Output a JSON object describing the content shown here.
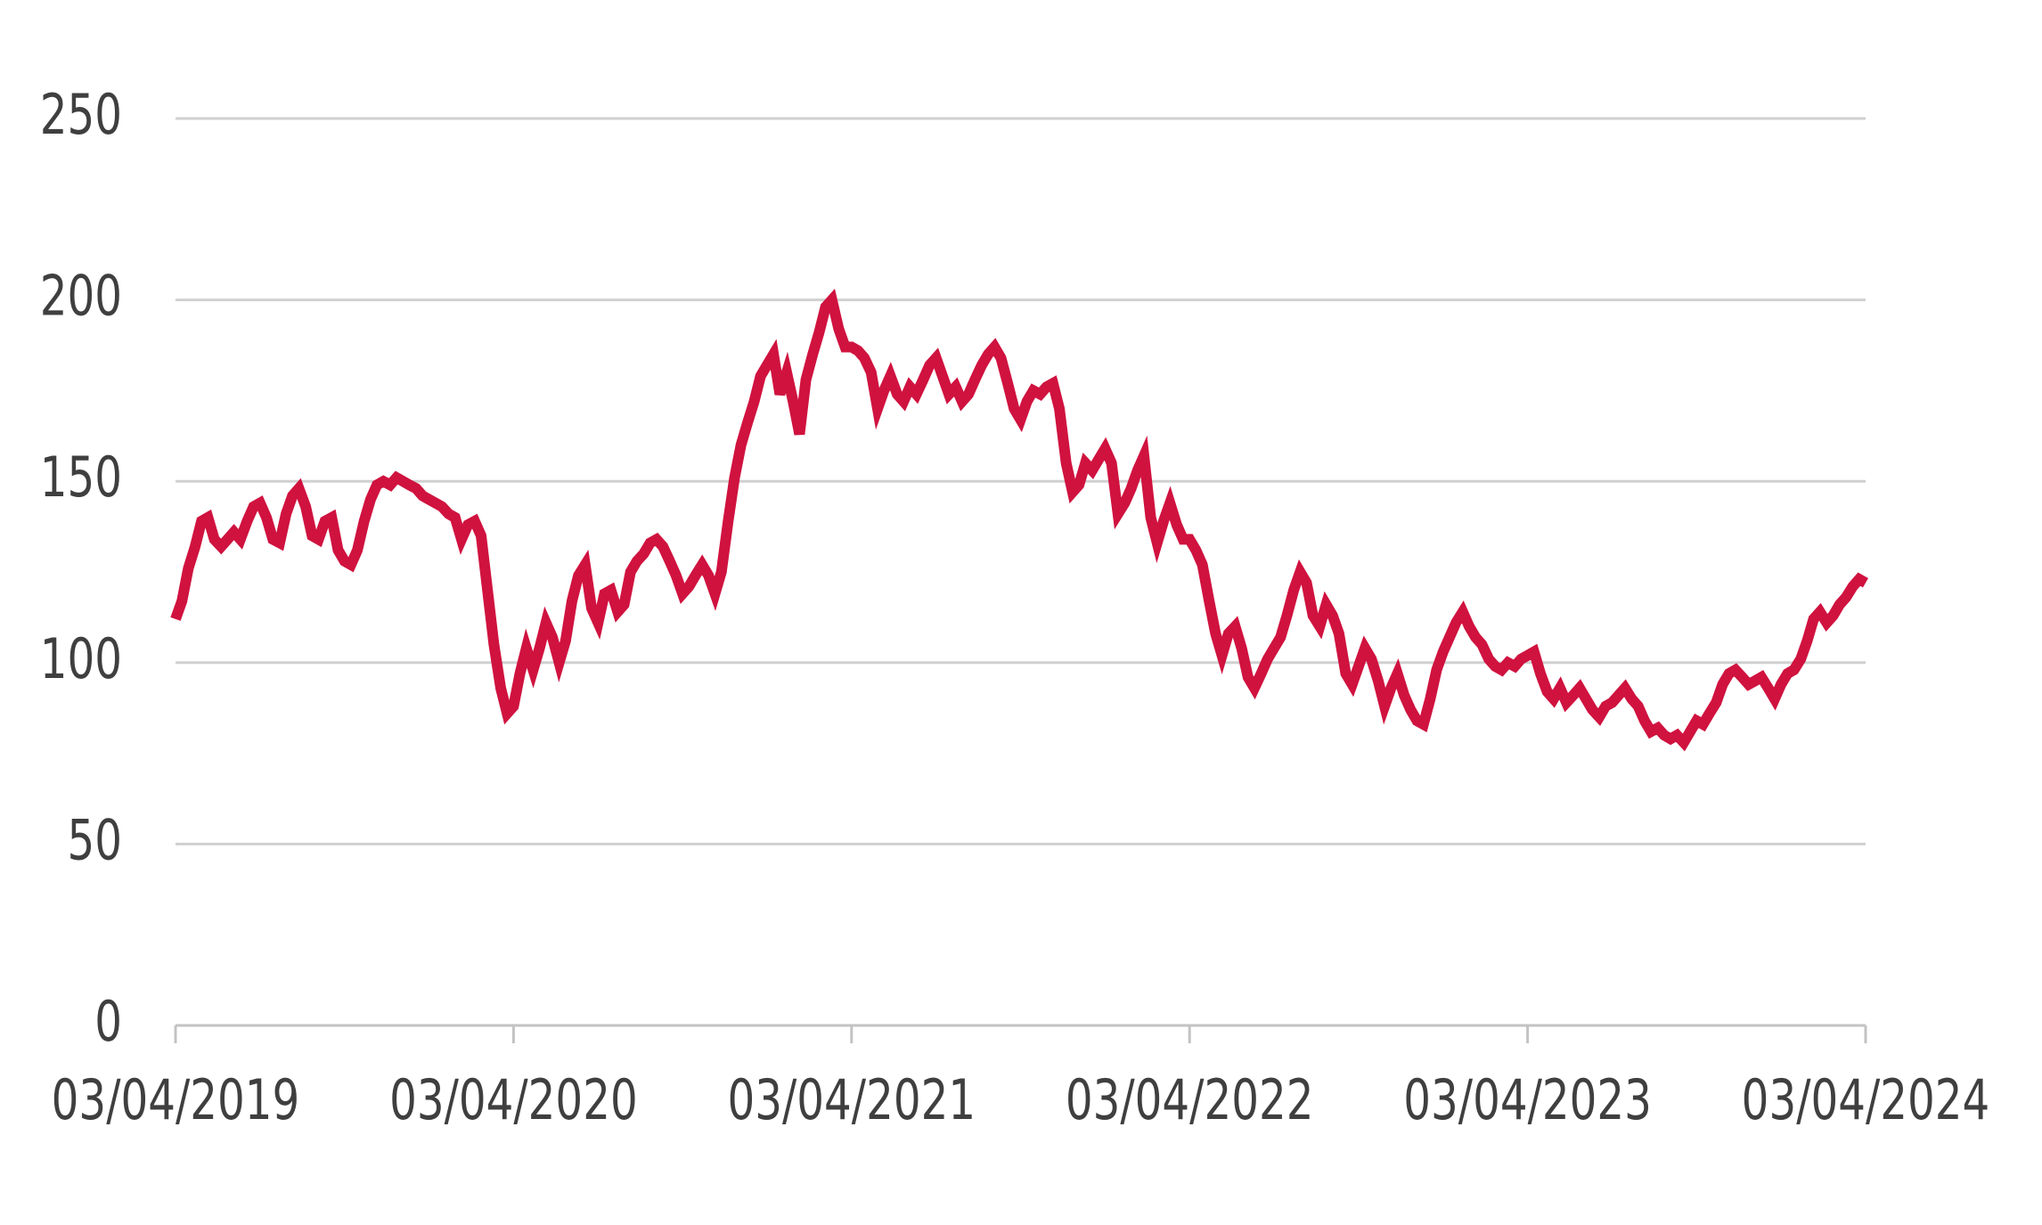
{
  "chart_data": {
    "type": "line",
    "title": "",
    "legend": "none",
    "grid": "horizontal",
    "background": "#ffffff",
    "line_color": "#d0123f",
    "grid_color": "#d0d0d0",
    "axis_color": "#c3c3c3",
    "label_color": "#3f3f3f",
    "ylim": [
      0,
      250
    ],
    "y_ticks": [
      250,
      200,
      150,
      100,
      50,
      0
    ],
    "y_tick_labels": [
      "250",
      "200",
      "150",
      "100",
      "50",
      "0"
    ],
    "x_tick_labels": [
      "03/04/2019",
      "03/04/2020",
      "03/04/2021",
      "03/04/2022",
      "03/04/2023",
      "03/04/2024"
    ],
    "x_unit": "years since 03/04/2019",
    "xlim_years": [
      0,
      5
    ],
    "points": [
      [
        0.0,
        112
      ],
      [
        0.019,
        117
      ],
      [
        0.038,
        126
      ],
      [
        0.058,
        132
      ],
      [
        0.077,
        139
      ],
      [
        0.096,
        140
      ],
      [
        0.115,
        134
      ],
      [
        0.135,
        132
      ],
      [
        0.154,
        134
      ],
      [
        0.173,
        136
      ],
      [
        0.192,
        134
      ],
      [
        0.212,
        139
      ],
      [
        0.231,
        143
      ],
      [
        0.25,
        144
      ],
      [
        0.269,
        140
      ],
      [
        0.288,
        134
      ],
      [
        0.308,
        133
      ],
      [
        0.327,
        141
      ],
      [
        0.346,
        146
      ],
      [
        0.365,
        148
      ],
      [
        0.385,
        143
      ],
      [
        0.404,
        135
      ],
      [
        0.423,
        134
      ],
      [
        0.442,
        139
      ],
      [
        0.462,
        140
      ],
      [
        0.481,
        131
      ],
      [
        0.5,
        128
      ],
      [
        0.519,
        127
      ],
      [
        0.538,
        131
      ],
      [
        0.558,
        139
      ],
      [
        0.577,
        145
      ],
      [
        0.596,
        149
      ],
      [
        0.615,
        150
      ],
      [
        0.635,
        149
      ],
      [
        0.654,
        151
      ],
      [
        0.673,
        150
      ],
      [
        0.692,
        149
      ],
      [
        0.712,
        148
      ],
      [
        0.731,
        146
      ],
      [
        0.75,
        145
      ],
      [
        0.769,
        144
      ],
      [
        0.788,
        143
      ],
      [
        0.808,
        141
      ],
      [
        0.827,
        140
      ],
      [
        0.846,
        134
      ],
      [
        0.865,
        138
      ],
      [
        0.885,
        139
      ],
      [
        0.904,
        135
      ],
      [
        0.923,
        120
      ],
      [
        0.942,
        105
      ],
      [
        0.962,
        93
      ],
      [
        0.981,
        86
      ],
      [
        1.0,
        88
      ],
      [
        1.019,
        97
      ],
      [
        1.038,
        104
      ],
      [
        1.058,
        98
      ],
      [
        1.077,
        104
      ],
      [
        1.096,
        111
      ],
      [
        1.115,
        107
      ],
      [
        1.135,
        100
      ],
      [
        1.154,
        106
      ],
      [
        1.173,
        117
      ],
      [
        1.192,
        124
      ],
      [
        1.212,
        127
      ],
      [
        1.231,
        115
      ],
      [
        1.25,
        111
      ],
      [
        1.269,
        119
      ],
      [
        1.288,
        120
      ],
      [
        1.308,
        114
      ],
      [
        1.327,
        116
      ],
      [
        1.346,
        125
      ],
      [
        1.365,
        128
      ],
      [
        1.385,
        130
      ],
      [
        1.404,
        133
      ],
      [
        1.423,
        134
      ],
      [
        1.442,
        132
      ],
      [
        1.462,
        128
      ],
      [
        1.481,
        124
      ],
      [
        1.5,
        119
      ],
      [
        1.519,
        121
      ],
      [
        1.538,
        124
      ],
      [
        1.558,
        127
      ],
      [
        1.577,
        124
      ],
      [
        1.596,
        119
      ],
      [
        1.615,
        125
      ],
      [
        1.635,
        139
      ],
      [
        1.654,
        151
      ],
      [
        1.673,
        160
      ],
      [
        1.692,
        166
      ],
      [
        1.712,
        172
      ],
      [
        1.731,
        179
      ],
      [
        1.75,
        182
      ],
      [
        1.769,
        185
      ],
      [
        1.788,
        174
      ],
      [
        1.808,
        180
      ],
      [
        1.827,
        172
      ],
      [
        1.846,
        163
      ],
      [
        1.865,
        178
      ],
      [
        1.885,
        185
      ],
      [
        1.904,
        191
      ],
      [
        1.923,
        198
      ],
      [
        1.942,
        200
      ],
      [
        1.962,
        192
      ],
      [
        1.981,
        187
      ],
      [
        2.0,
        187
      ],
      [
        2.019,
        186
      ],
      [
        2.038,
        184
      ],
      [
        2.058,
        180
      ],
      [
        2.077,
        170
      ],
      [
        2.096,
        175
      ],
      [
        2.115,
        179
      ],
      [
        2.135,
        174
      ],
      [
        2.154,
        172
      ],
      [
        2.173,
        176
      ],
      [
        2.192,
        174
      ],
      [
        2.212,
        178
      ],
      [
        2.231,
        182
      ],
      [
        2.25,
        184
      ],
      [
        2.269,
        179
      ],
      [
        2.288,
        174
      ],
      [
        2.308,
        176
      ],
      [
        2.327,
        172
      ],
      [
        2.346,
        174
      ],
      [
        2.365,
        178
      ],
      [
        2.385,
        182
      ],
      [
        2.404,
        185
      ],
      [
        2.423,
        187
      ],
      [
        2.442,
        184
      ],
      [
        2.462,
        177
      ],
      [
        2.481,
        170
      ],
      [
        2.5,
        167
      ],
      [
        2.519,
        172
      ],
      [
        2.538,
        175
      ],
      [
        2.558,
        174
      ],
      [
        2.577,
        176
      ],
      [
        2.596,
        177
      ],
      [
        2.615,
        170
      ],
      [
        2.635,
        155
      ],
      [
        2.654,
        147
      ],
      [
        2.673,
        149
      ],
      [
        2.692,
        155
      ],
      [
        2.712,
        153
      ],
      [
        2.731,
        156
      ],
      [
        2.75,
        159
      ],
      [
        2.769,
        155
      ],
      [
        2.788,
        141
      ],
      [
        2.808,
        144
      ],
      [
        2.827,
        148
      ],
      [
        2.846,
        153
      ],
      [
        2.865,
        157
      ],
      [
        2.885,
        140
      ],
      [
        2.904,
        133
      ],
      [
        2.923,
        139
      ],
      [
        2.942,
        144
      ],
      [
        2.962,
        138
      ],
      [
        2.981,
        134
      ],
      [
        3.0,
        134
      ],
      [
        3.019,
        131
      ],
      [
        3.038,
        127
      ],
      [
        3.058,
        117
      ],
      [
        3.077,
        108
      ],
      [
        3.096,
        102
      ],
      [
        3.115,
        108
      ],
      [
        3.135,
        110
      ],
      [
        3.154,
        104
      ],
      [
        3.173,
        96
      ],
      [
        3.192,
        93
      ],
      [
        3.212,
        97
      ],
      [
        3.231,
        101
      ],
      [
        3.25,
        104
      ],
      [
        3.269,
        107
      ],
      [
        3.288,
        113
      ],
      [
        3.308,
        120
      ],
      [
        3.327,
        125
      ],
      [
        3.346,
        122
      ],
      [
        3.365,
        113
      ],
      [
        3.385,
        110
      ],
      [
        3.404,
        116
      ],
      [
        3.423,
        113
      ],
      [
        3.442,
        108
      ],
      [
        3.462,
        97
      ],
      [
        3.481,
        94
      ],
      [
        3.5,
        99
      ],
      [
        3.519,
        104
      ],
      [
        3.538,
        101
      ],
      [
        3.558,
        95
      ],
      [
        3.577,
        88
      ],
      [
        3.596,
        93
      ],
      [
        3.615,
        97
      ],
      [
        3.635,
        91
      ],
      [
        3.654,
        87
      ],
      [
        3.673,
        84
      ],
      [
        3.692,
        83
      ],
      [
        3.712,
        90
      ],
      [
        3.731,
        98
      ],
      [
        3.75,
        103
      ],
      [
        3.769,
        107
      ],
      [
        3.788,
        111
      ],
      [
        3.808,
        114
      ],
      [
        3.827,
        110
      ],
      [
        3.846,
        107
      ],
      [
        3.865,
        105
      ],
      [
        3.885,
        101
      ],
      [
        3.904,
        99
      ],
      [
        3.923,
        98
      ],
      [
        3.942,
        100
      ],
      [
        3.962,
        99
      ],
      [
        3.981,
        101
      ],
      [
        4.0,
        102
      ],
      [
        4.019,
        103
      ],
      [
        4.038,
        97
      ],
      [
        4.058,
        92
      ],
      [
        4.077,
        90
      ],
      [
        4.096,
        93
      ],
      [
        4.115,
        89
      ],
      [
        4.135,
        91
      ],
      [
        4.154,
        93
      ],
      [
        4.173,
        90
      ],
      [
        4.192,
        87
      ],
      [
        4.212,
        85
      ],
      [
        4.231,
        88
      ],
      [
        4.25,
        89
      ],
      [
        4.269,
        91
      ],
      [
        4.288,
        93
      ],
      [
        4.308,
        90
      ],
      [
        4.327,
        88
      ],
      [
        4.346,
        84
      ],
      [
        4.365,
        81
      ],
      [
        4.385,
        82
      ],
      [
        4.404,
        80
      ],
      [
        4.423,
        79
      ],
      [
        4.442,
        80
      ],
      [
        4.462,
        78
      ],
      [
        4.481,
        81
      ],
      [
        4.5,
        84
      ],
      [
        4.519,
        83
      ],
      [
        4.538,
        86
      ],
      [
        4.558,
        89
      ],
      [
        4.577,
        94
      ],
      [
        4.596,
        97
      ],
      [
        4.615,
        98
      ],
      [
        4.635,
        96
      ],
      [
        4.654,
        94
      ],
      [
        4.673,
        95
      ],
      [
        4.692,
        96
      ],
      [
        4.712,
        93
      ],
      [
        4.731,
        90
      ],
      [
        4.75,
        94
      ],
      [
        4.769,
        97
      ],
      [
        4.788,
        98
      ],
      [
        4.808,
        101
      ],
      [
        4.827,
        106
      ],
      [
        4.846,
        112
      ],
      [
        4.865,
        114
      ],
      [
        4.885,
        111
      ],
      [
        4.904,
        113
      ],
      [
        4.923,
        116
      ],
      [
        4.942,
        118
      ],
      [
        4.962,
        121
      ],
      [
        4.981,
        123
      ],
      [
        5.0,
        122
      ]
    ]
  }
}
